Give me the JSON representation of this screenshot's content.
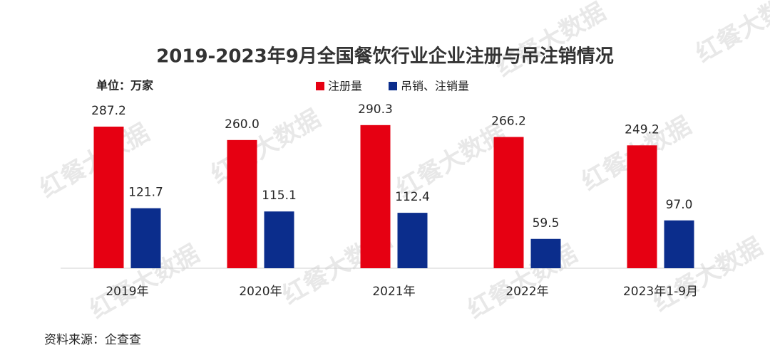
{
  "chart_data": {
    "type": "bar",
    "title": "2019-2023年9月全国餐饮行业企业注册与吊注销情况",
    "unit_label": "单位：万家",
    "source": "资料来源：企查查",
    "watermark": "红餐大数据",
    "categories": [
      "2019年",
      "2020年",
      "2021年",
      "2022年",
      "2023年1-9月"
    ],
    "series": [
      {
        "name": "注册量",
        "color": "#e60012",
        "values": [
          287.2,
          260,
          290.3,
          266.2,
          249.2
        ],
        "value_labels": [
          "287.2",
          "260.0",
          "290.3",
          "266.2",
          "249.2"
        ]
      },
      {
        "name": "吊销、注销量",
        "color": "#0b2d8c",
        "values": [
          121.7,
          115.1,
          112.4,
          59.5,
          97
        ],
        "value_labels": [
          "121.7",
          "115.1",
          "112.4",
          "59.5",
          "97.0"
        ]
      }
    ],
    "grid": false
  }
}
